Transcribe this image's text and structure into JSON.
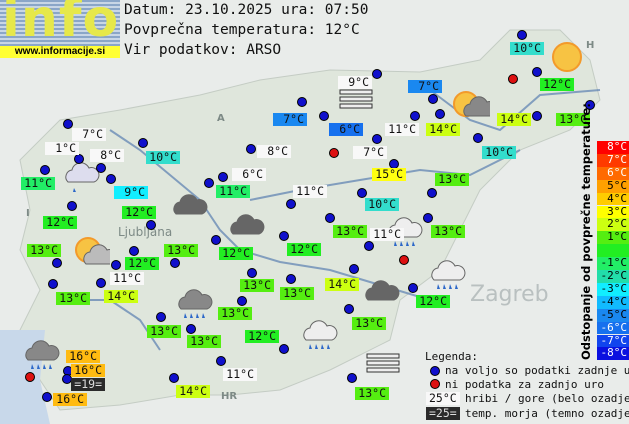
{
  "logo": {
    "text": "info",
    "url": "www.informacije.si"
  },
  "header": {
    "date_line": "Datum: 23.10.2025 ura: 07:50",
    "avg_line": "Povprečna temperatura: 12°C",
    "source_line": "Vir podatkov: ARSO"
  },
  "map_labels": {
    "ljubljana": "Ljubljana",
    "zagreb": "Zagreb",
    "austria": "A",
    "italy": "I",
    "hungary": "H",
    "croatia": "HR"
  },
  "stations": [
    {
      "t": "9°C",
      "c": "#f8f8f8"
    },
    {
      "t": "7°C",
      "c": "#1a88f0"
    },
    {
      "t": "10°C",
      "c": "#33ddcc"
    },
    {
      "t": "12°C",
      "c": "#22ee22"
    },
    {
      "t": "7°C",
      "c": "#1a88f0"
    },
    {
      "t": "6°C",
      "c": "#1670ee"
    },
    {
      "t": "11°C",
      "c": "#f8f8f8"
    },
    {
      "t": "14°C",
      "c": "#ccff11"
    },
    {
      "t": "14°C",
      "c": "#ccff11"
    },
    {
      "t": "13°C",
      "c": "#55ee11"
    },
    {
      "t": "7°C",
      "c": "#f8f8f8"
    },
    {
      "t": "10°C",
      "c": "#33ddcc"
    },
    {
      "t": "15°C",
      "c": "#ffff11"
    },
    {
      "t": "13°C",
      "c": "#55ee11"
    },
    {
      "t": "8°C",
      "c": "#f8f8f8"
    },
    {
      "t": "7°C",
      "c": "#f8f8f8"
    },
    {
      "t": "1°C",
      "c": "#f8f8f8"
    },
    {
      "t": "8°C",
      "c": "#f8f8f8"
    },
    {
      "t": "10°C",
      "c": "#33ddcc"
    },
    {
      "t": "11°C",
      "c": "#22ee66"
    },
    {
      "t": "9°C",
      "c": "#11eeff"
    },
    {
      "t": "6°C",
      "c": "#f8f8f8"
    },
    {
      "t": "11°C",
      "c": "#22ee66"
    },
    {
      "t": "11°C",
      "c": "#f8f8f8"
    },
    {
      "t": "12°C",
      "c": "#22ee22"
    },
    {
      "t": "12°C",
      "c": "#22ee22"
    },
    {
      "t": "13°C",
      "c": "#55ee11"
    },
    {
      "t": "13°C",
      "c": "#55ee11"
    },
    {
      "t": "12°C",
      "c": "#22ee22"
    },
    {
      "t": "12°C",
      "c": "#22ee22"
    },
    {
      "t": "12°C",
      "c": "#22ee22"
    },
    {
      "t": "10°C",
      "c": "#33ddcc"
    },
    {
      "t": "13°C",
      "c": "#55ee11"
    },
    {
      "t": "11°C",
      "c": "#f8f8f8"
    },
    {
      "t": "13°C",
      "c": "#55ee11"
    },
    {
      "t": "14°C",
      "c": "#ccff11"
    },
    {
      "t": "13°C",
      "c": "#55ee11"
    },
    {
      "t": "12°C",
      "c": "#22ee22"
    },
    {
      "t": "13°C",
      "c": "#55ee11"
    },
    {
      "t": "11°C",
      "c": "#f8f8f8"
    },
    {
      "t": "13°C",
      "c": "#55ee11"
    },
    {
      "t": "14°C",
      "c": "#ccff11"
    },
    {
      "t": "13°C",
      "c": "#55ee11"
    },
    {
      "t": "13°C",
      "c": "#55ee11"
    },
    {
      "t": "13°C",
      "c": "#55ee11"
    },
    {
      "t": "13°C",
      "c": "#55ee11"
    },
    {
      "t": "12°C",
      "c": "#22ee22"
    },
    {
      "t": "16°C",
      "c": "#ffbb11"
    },
    {
      "t": "16°C",
      "c": "#ffbb11"
    },
    {
      "t": "=19=",
      "c": "#2a2a2a"
    },
    {
      "t": "16°C",
      "c": "#ffbb11"
    },
    {
      "t": "11°C",
      "c": "#f8f8f8"
    },
    {
      "t": "14°C",
      "c": "#ccff11"
    },
    {
      "t": "13°C",
      "c": "#55ee11"
    }
  ],
  "scale": {
    "title": "Odstopanje od povprečne temperature:",
    "bands": [
      {
        "label": "8°C",
        "c": "#ff0000",
        "fg": "#ffffff"
      },
      {
        "label": "7°C",
        "c": "#ff3a00",
        "fg": "#ffffff"
      },
      {
        "label": "6°C",
        "c": "#ff6a00",
        "fg": "#ffffff"
      },
      {
        "label": "5°C",
        "c": "#ffa000",
        "fg": "#000000"
      },
      {
        "label": "4°C",
        "c": "#ffcc00",
        "fg": "#000000"
      },
      {
        "label": "3°C",
        "c": "#ffff00",
        "fg": "#000000"
      },
      {
        "label": "2°C",
        "c": "#ccff11",
        "fg": "#000000"
      },
      {
        "label": "1°C",
        "c": "#55ee11",
        "fg": "#000000"
      },
      {
        "label": "",
        "c": "#22ee22",
        "fg": "#000000"
      },
      {
        "label": "-1°C",
        "c": "#22ee66",
        "fg": "#000000"
      },
      {
        "label": "-2°C",
        "c": "#22ddaa",
        "fg": "#000000"
      },
      {
        "label": "-3°C",
        "c": "#11eeff",
        "fg": "#000000"
      },
      {
        "label": "-4°C",
        "c": "#11bbff",
        "fg": "#000000"
      },
      {
        "label": "-5°C",
        "c": "#1a88f0",
        "fg": "#000000"
      },
      {
        "label": "-6°C",
        "c": "#1670ee",
        "fg": "#ffffff"
      },
      {
        "label": "-7°C",
        "c": "#1144ee",
        "fg": "#ffffff"
      },
      {
        "label": "-8°C",
        "c": "#0a10e0",
        "fg": "#ffffff"
      }
    ]
  },
  "legend": {
    "title": "Legenda:",
    "available": "na voljo so podatki zadnje ure",
    "missing": "ni podatka za zadnjo uro",
    "mountain_sample": "25°C",
    "mountain_text": "hribi / gore (belo ozadje)",
    "sea_sample": "=25=",
    "sea_text": "temp. morja (temno ozadje)"
  }
}
